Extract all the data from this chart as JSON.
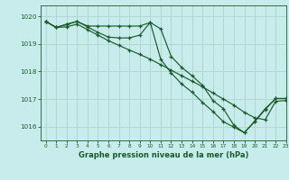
{
  "title": "Graphe pression niveau de la mer (hPa)",
  "background_color": "#c8ecec",
  "grid_color": "#b0d8d0",
  "line_color": "#1a5c2a",
  "xlim": [
    -0.5,
    23
  ],
  "ylim": [
    1015.5,
    1020.4
  ],
  "yticks": [
    1016,
    1017,
    1018,
    1019,
    1020
  ],
  "xticks": [
    0,
    1,
    2,
    3,
    4,
    5,
    6,
    7,
    8,
    9,
    10,
    11,
    12,
    13,
    14,
    15,
    16,
    17,
    18,
    19,
    20,
    21,
    22,
    23
  ],
  "series1_x": [
    0,
    1,
    2,
    3,
    4,
    5,
    6,
    7,
    8,
    9,
    10,
    11,
    12,
    13,
    14,
    15,
    16,
    17,
    18,
    19,
    20,
    21,
    22,
    23
  ],
  "series1_y": [
    1019.82,
    1019.6,
    1019.7,
    1019.82,
    1019.65,
    1019.65,
    1019.65,
    1019.65,
    1019.65,
    1019.65,
    1019.78,
    1019.55,
    1018.55,
    1018.15,
    1017.85,
    1017.5,
    1016.95,
    1016.65,
    1016.05,
    1015.78,
    1016.2,
    1016.65,
    1017.02,
    1017.02
  ],
  "series2_x": [
    0,
    1,
    2,
    3,
    4,
    5,
    6,
    7,
    8,
    9,
    10,
    11,
    12,
    13,
    14,
    15,
    16,
    17,
    18,
    19,
    20,
    21,
    22,
    23
  ],
  "series2_y": [
    1019.82,
    1019.6,
    1019.72,
    1019.82,
    1019.62,
    1019.42,
    1019.25,
    1019.22,
    1019.22,
    1019.32,
    1019.78,
    1018.45,
    1017.95,
    1017.55,
    1017.25,
    1016.88,
    1016.55,
    1016.18,
    1015.98,
    1015.78,
    1016.18,
    1016.62,
    1017.02,
    1017.02
  ],
  "series3_x": [
    0,
    1,
    2,
    3,
    4,
    5,
    6,
    7,
    8,
    9,
    10,
    11,
    12,
    13,
    14,
    15,
    16,
    17,
    18,
    19,
    20,
    21,
    22,
    23
  ],
  "series3_y": [
    1019.82,
    1019.6,
    1019.62,
    1019.72,
    1019.52,
    1019.32,
    1019.12,
    1018.95,
    1018.78,
    1018.62,
    1018.45,
    1018.25,
    1018.05,
    1017.85,
    1017.65,
    1017.45,
    1017.22,
    1017.0,
    1016.78,
    1016.52,
    1016.32,
    1016.25,
    1016.92,
    1016.95
  ]
}
